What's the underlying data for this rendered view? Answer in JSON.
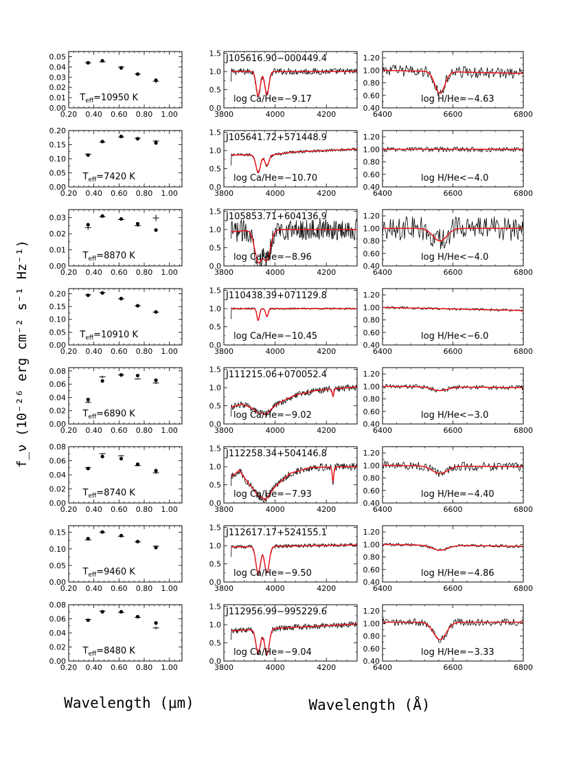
{
  "figure": {
    "ylabel": "f_ν (10⁻²⁶ erg cm⁻² s⁻¹ Hz⁻¹)",
    "xlabel_left": "Wavelength (μm)",
    "xlabel_right": "Wavelength (Å)"
  },
  "colors": {
    "data": "#000000",
    "model": "#e8141c"
  },
  "chart_data": [
    {
      "type": "scatter",
      "panel": "sed",
      "row": 0,
      "xlim": [
        0.2,
        1.1
      ],
      "ylim": [
        0.0,
        0.055
      ],
      "yticks": [
        0.0,
        0.01,
        0.02,
        0.03,
        0.04,
        0.05
      ],
      "xticks": [
        0.2,
        0.4,
        0.6,
        0.8,
        1.0
      ],
      "label": "T_eff=10950 K",
      "teff_text": "=10950 K",
      "points": [
        {
          "x": 0.354,
          "y": 0.044,
          "model": 0.044,
          "err": 0.001
        },
        {
          "x": 0.468,
          "y": 0.046,
          "model": 0.045,
          "err": 0.001
        },
        {
          "x": 0.617,
          "y": 0.039,
          "model": 0.04,
          "err": 0.001
        },
        {
          "x": 0.748,
          "y": 0.033,
          "model": 0.033,
          "err": 0.001
        },
        {
          "x": 0.893,
          "y": 0.027,
          "model": 0.026,
          "err": 0.002
        }
      ]
    },
    {
      "type": "scatter",
      "panel": "sed",
      "row": 1,
      "xlim": [
        0.2,
        1.1
      ],
      "ylim": [
        0.0,
        0.2
      ],
      "yticks": [
        0.0,
        0.05,
        0.1,
        0.15,
        0.2
      ],
      "xticks": [
        0.2,
        0.4,
        0.6,
        0.8,
        1.0
      ],
      "label": "T_eff=7420 K",
      "teff_text": "=7420 K",
      "points": [
        {
          "x": 0.354,
          "y": 0.113,
          "model": 0.116,
          "err": 0.003
        },
        {
          "x": 0.468,
          "y": 0.161,
          "model": 0.159,
          "err": 0.002
        },
        {
          "x": 0.617,
          "y": 0.179,
          "model": 0.177,
          "err": 0.002
        },
        {
          "x": 0.748,
          "y": 0.171,
          "model": 0.173,
          "err": 0.002
        },
        {
          "x": 0.893,
          "y": 0.156,
          "model": 0.163,
          "err": 0.004
        }
      ]
    },
    {
      "type": "scatter",
      "panel": "sed",
      "row": 2,
      "xlim": [
        0.2,
        1.1
      ],
      "ylim": [
        0.0,
        0.035
      ],
      "yticks": [
        0.0,
        0.01,
        0.02,
        0.03
      ],
      "xticks": [
        0.2,
        0.4,
        0.6,
        0.8,
        1.0
      ],
      "label": "T_eff=8870 K",
      "teff_text": "=8870 K",
      "points": [
        {
          "x": 0.354,
          "y": 0.0256,
          "model": 0.0238,
          "err": 0.0015
        },
        {
          "x": 0.468,
          "y": 0.031,
          "model": 0.0305,
          "err": 0.0006
        },
        {
          "x": 0.617,
          "y": 0.0292,
          "model": 0.0288,
          "err": 0.0006
        },
        {
          "x": 0.748,
          "y": 0.0262,
          "model": 0.025,
          "err": 0.0008
        },
        {
          "x": 0.893,
          "y": 0.0223,
          "model": 0.0298,
          "err": 0.002
        }
      ]
    },
    {
      "type": "scatter",
      "panel": "sed",
      "row": 3,
      "xlim": [
        0.2,
        1.1
      ],
      "ylim": [
        0.0,
        0.22
      ],
      "yticks": [
        0.0,
        0.05,
        0.1,
        0.15,
        0.2
      ],
      "xticks": [
        0.2,
        0.4,
        0.6,
        0.8,
        1.0
      ],
      "label": "T_eff=10910 K",
      "teff_text": "=10910 K",
      "points": [
        {
          "x": 0.354,
          "y": 0.194,
          "model": 0.196,
          "err": 0.002
        },
        {
          "x": 0.468,
          "y": 0.203,
          "model": 0.205,
          "err": 0.002
        },
        {
          "x": 0.617,
          "y": 0.181,
          "model": 0.18,
          "err": 0.002
        },
        {
          "x": 0.748,
          "y": 0.153,
          "model": 0.153,
          "err": 0.002
        },
        {
          "x": 0.893,
          "y": 0.129,
          "model": 0.128,
          "err": 0.003
        }
      ]
    },
    {
      "type": "scatter",
      "panel": "sed",
      "row": 4,
      "xlim": [
        0.2,
        1.1
      ],
      "ylim": [
        0.0,
        0.085
      ],
      "yticks": [
        0.0,
        0.02,
        0.04,
        0.06,
        0.08
      ],
      "xticks": [
        0.2,
        0.4,
        0.6,
        0.8,
        1.0
      ],
      "label": "T_eff=6890 K",
      "teff_text": "=6890 K",
      "points": [
        {
          "x": 0.354,
          "y": 0.037,
          "model": 0.033,
          "err": 0.002
        },
        {
          "x": 0.468,
          "y": 0.065,
          "model": 0.071,
          "err": 0.002
        },
        {
          "x": 0.617,
          "y": 0.074,
          "model": 0.074,
          "err": 0.001
        },
        {
          "x": 0.748,
          "y": 0.073,
          "model": 0.068,
          "err": 0.001
        },
        {
          "x": 0.893,
          "y": 0.066,
          "model": 0.062,
          "err": 0.002
        }
      ]
    },
    {
      "type": "scatter",
      "panel": "sed",
      "row": 5,
      "xlim": [
        0.2,
        1.1
      ],
      "ylim": [
        0.0,
        0.08
      ],
      "yticks": [
        0.0,
        0.02,
        0.04,
        0.06,
        0.08
      ],
      "xticks": [
        0.2,
        0.4,
        0.6,
        0.8,
        1.0
      ],
      "label": "T_eff=8740 K",
      "teff_text": "=8740 K",
      "points": [
        {
          "x": 0.354,
          "y": 0.049,
          "model": 0.05,
          "err": 0.001
        },
        {
          "x": 0.468,
          "y": 0.066,
          "model": 0.07,
          "err": 0.001
        },
        {
          "x": 0.617,
          "y": 0.063,
          "model": 0.067,
          "err": 0.001
        },
        {
          "x": 0.748,
          "y": 0.055,
          "model": 0.053,
          "err": 0.001
        },
        {
          "x": 0.893,
          "y": 0.046,
          "model": 0.043,
          "err": 0.002
        }
      ]
    },
    {
      "type": "scatter",
      "panel": "sed",
      "row": 6,
      "xlim": [
        0.2,
        1.1
      ],
      "ylim": [
        0.0,
        0.17
      ],
      "yticks": [
        0.0,
        0.05,
        0.1,
        0.15
      ],
      "xticks": [
        0.2,
        0.4,
        0.6,
        0.8,
        1.0
      ],
      "label": "T_eff=9460 K",
      "teff_text": "=9460 K",
      "points": [
        {
          "x": 0.354,
          "y": 0.131,
          "model": 0.127,
          "err": 0.002
        },
        {
          "x": 0.468,
          "y": 0.151,
          "model": 0.15,
          "err": 0.002
        },
        {
          "x": 0.617,
          "y": 0.14,
          "model": 0.138,
          "err": 0.002
        },
        {
          "x": 0.748,
          "y": 0.122,
          "model": 0.121,
          "err": 0.002
        },
        {
          "x": 0.893,
          "y": 0.104,
          "model": 0.108,
          "err": 0.003
        }
      ]
    },
    {
      "type": "scatter",
      "panel": "sed",
      "row": 7,
      "xlim": [
        0.2,
        1.1
      ],
      "ylim": [
        0.0,
        0.08
      ],
      "yticks": [
        0.0,
        0.02,
        0.04,
        0.06,
        0.08
      ],
      "xticks": [
        0.2,
        0.4,
        0.6,
        0.8,
        1.0
      ],
      "label": "T_eff=8480 K",
      "teff_text": "=8480 K",
      "points": [
        {
          "x": 0.354,
          "y": 0.058,
          "model": 0.059,
          "err": 0.001
        },
        {
          "x": 0.468,
          "y": 0.07,
          "model": 0.071,
          "err": 0.001
        },
        {
          "x": 0.617,
          "y": 0.07,
          "model": 0.069,
          "err": 0.001
        },
        {
          "x": 0.748,
          "y": 0.063,
          "model": 0.062,
          "err": 0.001
        },
        {
          "x": 0.893,
          "y": 0.054,
          "model": 0.047,
          "err": 0.002
        }
      ]
    },
    {
      "type": "line",
      "panel": "ca",
      "row": 0,
      "xlim": [
        3800,
        4320
      ],
      "ylim": [
        0.0,
        1.55
      ],
      "yticks": [
        0.0,
        0.5,
        1.0,
        1.5
      ],
      "xticks": [
        3800,
        4000,
        4200
      ],
      "name": "J105616.90−000449.4",
      "annotation": "log Ca/He=−9.17",
      "model": {
        "continuum": [
          [
            3800,
            1.0
          ],
          [
            4320,
            1.0
          ]
        ],
        "lines": [
          [
            3934,
            0.68,
            8
          ],
          [
            3968,
            0.64,
            8
          ]
        ]
      },
      "observed_noise": 0.09
    },
    {
      "type": "line",
      "panel": "ca",
      "row": 1,
      "xlim": [
        3800,
        4320
      ],
      "ylim": [
        0.0,
        1.55
      ],
      "yticks": [
        0.0,
        0.5,
        1.0,
        1.5
      ],
      "xticks": [
        3800,
        4000,
        4200
      ],
      "name": "J105641.72+571448.9",
      "annotation": "log Ca/He=−10.70",
      "model": {
        "continuum": [
          [
            3800,
            0.88
          ],
          [
            3990,
            0.88
          ],
          [
            4070,
            0.96
          ],
          [
            4320,
            1.04
          ]
        ],
        "lines": [
          [
            3934,
            0.48,
            9
          ],
          [
            3968,
            0.3,
            8
          ]
        ]
      },
      "observed_noise": 0.04
    },
    {
      "type": "line",
      "panel": "ca",
      "row": 2,
      "xlim": [
        3800,
        4320
      ],
      "ylim": [
        0.0,
        1.55
      ],
      "yticks": [
        0.0,
        0.5,
        1.0,
        1.5
      ],
      "xticks": [
        3800,
        4000,
        4200
      ],
      "name": "J105853.71+604136.9",
      "annotation": "log Ca/He=−8.96",
      "model": {
        "continuum": [
          [
            3800,
            0.92
          ],
          [
            3880,
            0.97
          ],
          [
            4040,
            1.0
          ],
          [
            4320,
            1.0
          ]
        ],
        "lines": [
          [
            3934,
            0.85,
            14
          ],
          [
            3968,
            0.8,
            14
          ]
        ]
      },
      "observed_noise": 0.3
    },
    {
      "type": "line",
      "panel": "ca",
      "row": 3,
      "xlim": [
        3800,
        4320
      ],
      "ylim": [
        0.0,
        1.55
      ],
      "yticks": [
        0.0,
        0.5,
        1.0,
        1.5
      ],
      "xticks": [
        3800,
        4000,
        4200
      ],
      "name": "J110438.39+071129.8",
      "annotation": "log Ca/He=−10.45",
      "model": {
        "continuum": [
          [
            3800,
            1.0
          ],
          [
            4320,
            1.0
          ]
        ],
        "lines": [
          [
            3934,
            0.33,
            5
          ],
          [
            3968,
            0.22,
            5
          ]
        ]
      },
      "observed_noise": 0.025
    },
    {
      "type": "line",
      "panel": "ca",
      "row": 4,
      "xlim": [
        3800,
        4320
      ],
      "ylim": [
        0.0,
        1.55
      ],
      "yticks": [
        0.0,
        0.5,
        1.0,
        1.5
      ],
      "xticks": [
        3800,
        4000,
        4200
      ],
      "name": "J111215.06+070052.4",
      "annotation": "log Ca/He=−9.02",
      "model": {
        "continuum": [
          [
            3800,
            0.4
          ],
          [
            3870,
            0.55
          ],
          [
            3960,
            0.3
          ],
          [
            4020,
            0.6
          ],
          [
            4080,
            0.8
          ],
          [
            4160,
            0.92
          ],
          [
            4320,
            1.02
          ]
        ],
        "lines": [
          [
            3934,
            0.15,
            10
          ],
          [
            3968,
            0.12,
            10
          ],
          [
            4226,
            0.2,
            3
          ]
        ]
      },
      "observed_noise": 0.09
    },
    {
      "type": "line",
      "panel": "ca",
      "row": 5,
      "xlim": [
        3800,
        4320
      ],
      "ylim": [
        0.0,
        1.55
      ],
      "yticks": [
        0.0,
        0.5,
        1.0,
        1.5
      ],
      "xticks": [
        3800,
        4000,
        4200
      ],
      "name": "J112258.34+504146.8",
      "annotation": "log Ca/He=−7.93",
      "model": {
        "continuum": [
          [
            3800,
            0.55
          ],
          [
            3860,
            0.9
          ],
          [
            3900,
            0.5
          ],
          [
            3960,
            0.1
          ],
          [
            4000,
            0.45
          ],
          [
            4060,
            0.82
          ],
          [
            4140,
            0.98
          ],
          [
            4320,
            1.0
          ]
        ],
        "lines": [
          [
            3934,
            0.2,
            10
          ],
          [
            3968,
            0.1,
            10
          ],
          [
            4226,
            0.4,
            3
          ]
        ]
      },
      "observed_noise": 0.1
    },
    {
      "type": "line",
      "panel": "ca",
      "row": 6,
      "xlim": [
        3800,
        4320
      ],
      "ylim": [
        0.0,
        1.55
      ],
      "yticks": [
        0.0,
        0.5,
        1.0,
        1.5
      ],
      "xticks": [
        3800,
        4000,
        4200
      ],
      "name": "J112617.17+524155.1",
      "annotation": "log Ca/He=−9.50",
      "model": {
        "continuum": [
          [
            3800,
            0.96
          ],
          [
            4320,
            1.02
          ]
        ],
        "lines": [
          [
            3934,
            0.75,
            9
          ],
          [
            3968,
            0.72,
            9
          ]
        ]
      },
      "observed_noise": 0.05
    },
    {
      "type": "line",
      "panel": "ca",
      "row": 7,
      "xlim": [
        3800,
        4320
      ],
      "ylim": [
        0.0,
        1.55
      ],
      "yticks": [
        0.0,
        0.5,
        1.0,
        1.5
      ],
      "xticks": [
        3800,
        4000,
        4200
      ],
      "name": "J112956.99−995229.6",
      "annotation": "log Ca/He=−9.04",
      "model": {
        "continuum": [
          [
            3800,
            0.82
          ],
          [
            4320,
            1.02
          ]
        ],
        "lines": [
          [
            3934,
            0.65,
            9
          ],
          [
            3968,
            0.7,
            9
          ]
        ]
      },
      "observed_noise": 0.08
    },
    {
      "type": "line",
      "panel": "h",
      "row": 0,
      "xlim": [
        6400,
        6800
      ],
      "ylim": [
        0.4,
        1.3
      ],
      "yticks": [
        0.4,
        0.6,
        0.8,
        1.0,
        1.2
      ],
      "xticks": [
        6400,
        6600,
        6800
      ],
      "annotation": "log H/He=−4.63",
      "model": {
        "base": 1.0,
        "slope": -0.05,
        "depth": 0.35,
        "width": 14
      },
      "observed_noise": 0.09
    },
    {
      "type": "line",
      "panel": "h",
      "row": 1,
      "xlim": [
        6400,
        6800
      ],
      "ylim": [
        0.4,
        1.3
      ],
      "yticks": [
        0.4,
        0.6,
        0.8,
        1.0,
        1.2
      ],
      "xticks": [
        6400,
        6600,
        6800
      ],
      "annotation": "log H/He<−4.0",
      "model": {
        "base": 1.0,
        "slope": 0.0,
        "depth": 0.0,
        "width": 14
      },
      "observed_noise": 0.04
    },
    {
      "type": "line",
      "panel": "h",
      "row": 2,
      "xlim": [
        6400,
        6800
      ],
      "ylim": [
        0.4,
        1.3
      ],
      "yticks": [
        0.4,
        0.6,
        0.8,
        1.0,
        1.2
      ],
      "xticks": [
        6400,
        6600,
        6800
      ],
      "annotation": "log H/He<−4.0",
      "model": {
        "base": 1.0,
        "slope": 0.0,
        "depth": 0.2,
        "width": 20
      },
      "observed_noise": 0.2
    },
    {
      "type": "line",
      "panel": "h",
      "row": 3,
      "xlim": [
        6400,
        6800
      ],
      "ylim": [
        0.4,
        1.3
      ],
      "yticks": [
        0.4,
        0.6,
        0.8,
        1.0,
        1.2
      ],
      "xticks": [
        6400,
        6600,
        6800
      ],
      "annotation": "log H/He<−6.0",
      "model": {
        "base": 1.0,
        "slope": -0.05,
        "depth": 0.0,
        "width": 14
      },
      "observed_noise": 0.02
    },
    {
      "type": "line",
      "panel": "h",
      "row": 4,
      "xlim": [
        6400,
        6800
      ],
      "ylim": [
        0.4,
        1.3
      ],
      "yticks": [
        0.4,
        0.6,
        0.8,
        1.0,
        1.2
      ],
      "xticks": [
        6400,
        6600,
        6800
      ],
      "annotation": "log H/He<−3.0",
      "model": {
        "base": 1.0,
        "slope": -0.02,
        "depth": 0.06,
        "width": 22
      },
      "observed_noise": 0.035
    },
    {
      "type": "line",
      "panel": "h",
      "row": 5,
      "xlim": [
        6400,
        6800
      ],
      "ylim": [
        0.4,
        1.3
      ],
      "yticks": [
        0.4,
        0.6,
        0.8,
        1.0,
        1.2
      ],
      "xticks": [
        6400,
        6600,
        6800
      ],
      "annotation": "log H/He=−4.40",
      "model": {
        "base": 1.0,
        "slope": -0.02,
        "depth": 0.12,
        "width": 22
      },
      "observed_noise": 0.07
    },
    {
      "type": "line",
      "panel": "h",
      "row": 6,
      "xlim": [
        6400,
        6800
      ],
      "ylim": [
        0.4,
        1.3
      ],
      "yticks": [
        0.4,
        0.6,
        0.8,
        1.0,
        1.2
      ],
      "xticks": [
        6400,
        6600,
        6800
      ],
      "annotation": "log H/He=−4.86",
      "model": {
        "base": 1.0,
        "slope": -0.03,
        "depth": 0.08,
        "width": 22
      },
      "observed_noise": 0.025
    },
    {
      "type": "line",
      "panel": "h",
      "row": 7,
      "xlim": [
        6400,
        6800
      ],
      "ylim": [
        0.4,
        1.3
      ],
      "yticks": [
        0.4,
        0.6,
        0.8,
        1.0,
        1.2
      ],
      "xticks": [
        6400,
        6600,
        6800
      ],
      "annotation": "log H/He=−3.33",
      "model": {
        "base": 1.02,
        "slope": 0.0,
        "depth": 0.28,
        "width": 18
      },
      "observed_noise": 0.06
    }
  ]
}
